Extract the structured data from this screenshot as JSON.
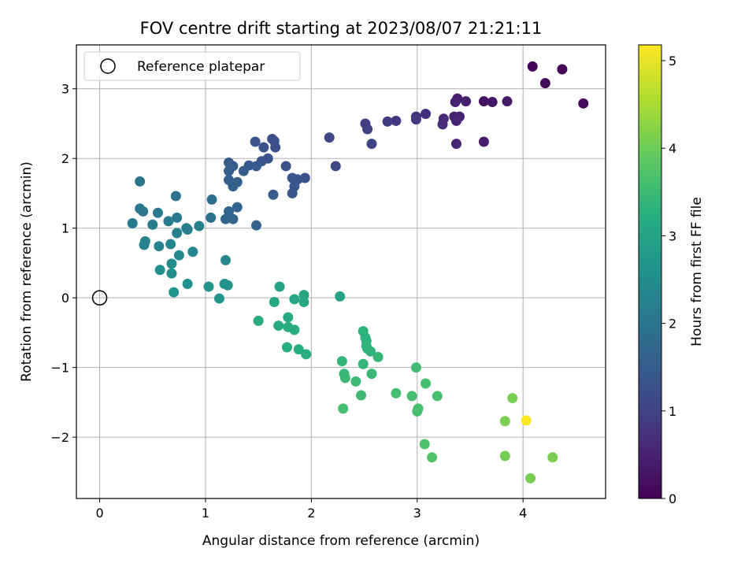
{
  "chart_data": {
    "type": "scatter",
    "title": "FOV centre drift starting at 2023/08/07 21:21:11",
    "xlabel": "Angular distance from reference (arcmin)",
    "ylabel": "Rotation from reference (arcmin)",
    "xlim": [
      -0.22,
      4.78
    ],
    "ylim": [
      -2.88,
      3.63
    ],
    "xticks": [
      0,
      1,
      2,
      3,
      4
    ],
    "yticks": [
      -2,
      -1,
      0,
      1,
      2,
      3
    ],
    "xtick_labels": [
      "0",
      "1",
      "2",
      "3",
      "4"
    ],
    "ytick_labels": [
      "−2",
      "−1",
      "0",
      "1",
      "2",
      "3"
    ],
    "grid": true,
    "legend": {
      "placement": "top-left",
      "label": "Reference platepar"
    },
    "reference_point": {
      "x": 0,
      "y": 0
    },
    "colorbar": {
      "label": "Hours from first FF file",
      "min": 0,
      "max": 5.18,
      "ticks": [
        0,
        1,
        2,
        3,
        4,
        5
      ],
      "tick_labels": [
        "0",
        "1",
        "2",
        "3",
        "4",
        "5"
      ],
      "colormap": "viridis"
    },
    "points": [
      {
        "x": 4.09,
        "y": 3.32,
        "c": 0.05
      },
      {
        "x": 4.37,
        "y": 3.28,
        "c": 0.08
      },
      {
        "x": 4.21,
        "y": 3.08,
        "c": 0.12
      },
      {
        "x": 4.57,
        "y": 2.79,
        "c": 0.15
      },
      {
        "x": 3.63,
        "y": 2.82,
        "c": 0.25
      },
      {
        "x": 3.71,
        "y": 2.81,
        "c": 0.3
      },
      {
        "x": 3.85,
        "y": 2.82,
        "c": 0.35
      },
      {
        "x": 3.38,
        "y": 2.86,
        "c": 0.4
      },
      {
        "x": 3.46,
        "y": 2.82,
        "c": 0.45
      },
      {
        "x": 3.36,
        "y": 2.81,
        "c": 0.5
      },
      {
        "x": 3.35,
        "y": 2.6,
        "c": 0.45
      },
      {
        "x": 3.4,
        "y": 2.6,
        "c": 0.5
      },
      {
        "x": 3.37,
        "y": 2.54,
        "c": 0.55
      },
      {
        "x": 3.25,
        "y": 2.57,
        "c": 0.6
      },
      {
        "x": 3.24,
        "y": 2.49,
        "c": 0.65
      },
      {
        "x": 3.08,
        "y": 2.64,
        "c": 0.7
      },
      {
        "x": 2.99,
        "y": 2.6,
        "c": 0.75
      },
      {
        "x": 2.99,
        "y": 2.56,
        "c": 0.8
      },
      {
        "x": 2.8,
        "y": 2.54,
        "c": 0.85
      },
      {
        "x": 2.72,
        "y": 2.53,
        "c": 0.9
      },
      {
        "x": 2.51,
        "y": 2.5,
        "c": 0.95
      },
      {
        "x": 2.53,
        "y": 2.42,
        "c": 1.0
      },
      {
        "x": 2.57,
        "y": 2.21,
        "c": 1.05
      },
      {
        "x": 3.37,
        "y": 2.21,
        "c": 0.55
      },
      {
        "x": 3.63,
        "y": 2.24,
        "c": 0.4
      },
      {
        "x": 2.17,
        "y": 2.3,
        "c": 1.1
      },
      {
        "x": 2.23,
        "y": 1.89,
        "c": 1.15
      },
      {
        "x": 1.63,
        "y": 2.28,
        "c": 1.2
      },
      {
        "x": 1.65,
        "y": 2.25,
        "c": 1.25
      },
      {
        "x": 1.66,
        "y": 2.16,
        "c": 1.25
      },
      {
        "x": 1.47,
        "y": 2.24,
        "c": 1.3
      },
      {
        "x": 1.55,
        "y": 2.16,
        "c": 1.3
      },
      {
        "x": 1.59,
        "y": 2.0,
        "c": 1.35
      },
      {
        "x": 1.53,
        "y": 1.96,
        "c": 1.35
      },
      {
        "x": 1.76,
        "y": 1.89,
        "c": 1.3
      },
      {
        "x": 1.82,
        "y": 1.72,
        "c": 1.35
      },
      {
        "x": 1.87,
        "y": 1.7,
        "c": 1.35
      },
      {
        "x": 1.94,
        "y": 1.72,
        "c": 1.3
      },
      {
        "x": 1.84,
        "y": 1.6,
        "c": 1.4
      },
      {
        "x": 1.82,
        "y": 1.5,
        "c": 1.4
      },
      {
        "x": 1.48,
        "y": 1.89,
        "c": 1.45
      },
      {
        "x": 1.41,
        "y": 1.9,
        "c": 1.45
      },
      {
        "x": 1.36,
        "y": 1.82,
        "c": 1.5
      },
      {
        "x": 1.26,
        "y": 1.89,
        "c": 1.5
      },
      {
        "x": 1.22,
        "y": 1.94,
        "c": 1.5
      },
      {
        "x": 1.22,
        "y": 1.82,
        "c": 1.55
      },
      {
        "x": 1.22,
        "y": 1.69,
        "c": 1.55
      },
      {
        "x": 1.3,
        "y": 1.66,
        "c": 1.6
      },
      {
        "x": 1.26,
        "y": 1.6,
        "c": 1.6
      },
      {
        "x": 1.64,
        "y": 1.48,
        "c": 1.5
      },
      {
        "x": 1.3,
        "y": 1.3,
        "c": 1.65
      },
      {
        "x": 1.22,
        "y": 1.24,
        "c": 1.65
      },
      {
        "x": 1.19,
        "y": 1.13,
        "c": 1.7
      },
      {
        "x": 1.26,
        "y": 1.13,
        "c": 1.7
      },
      {
        "x": 1.48,
        "y": 1.04,
        "c": 1.6
      },
      {
        "x": 1.06,
        "y": 1.41,
        "c": 1.85
      },
      {
        "x": 1.05,
        "y": 1.15,
        "c": 1.9
      },
      {
        "x": 0.38,
        "y": 1.67,
        "c": 2.0
      },
      {
        "x": 0.72,
        "y": 1.46,
        "c": 1.95
      },
      {
        "x": 0.38,
        "y": 1.28,
        "c": 2.05
      },
      {
        "x": 0.41,
        "y": 1.24,
        "c": 2.05
      },
      {
        "x": 0.55,
        "y": 1.22,
        "c": 2.1
      },
      {
        "x": 0.73,
        "y": 1.15,
        "c": 2.1
      },
      {
        "x": 0.65,
        "y": 1.1,
        "c": 2.15
      },
      {
        "x": 0.31,
        "y": 1.07,
        "c": 2.1
      },
      {
        "x": 0.5,
        "y": 1.05,
        "c": 2.15
      },
      {
        "x": 0.82,
        "y": 1.0,
        "c": 2.2
      },
      {
        "x": 0.94,
        "y": 1.03,
        "c": 2.2
      },
      {
        "x": 0.83,
        "y": 0.98,
        "c": 2.2
      },
      {
        "x": 0.73,
        "y": 0.93,
        "c": 2.25
      },
      {
        "x": 0.43,
        "y": 0.81,
        "c": 2.25
      },
      {
        "x": 0.42,
        "y": 0.76,
        "c": 2.3
      },
      {
        "x": 0.56,
        "y": 0.74,
        "c": 2.3
      },
      {
        "x": 0.67,
        "y": 0.77,
        "c": 2.35
      },
      {
        "x": 0.88,
        "y": 0.66,
        "c": 2.35
      },
      {
        "x": 0.75,
        "y": 0.61,
        "c": 2.4
      },
      {
        "x": 1.19,
        "y": 0.54,
        "c": 2.4
      },
      {
        "x": 0.68,
        "y": 0.49,
        "c": 2.5
      },
      {
        "x": 0.57,
        "y": 0.4,
        "c": 2.55
      },
      {
        "x": 0.68,
        "y": 0.35,
        "c": 2.55
      },
      {
        "x": 0.83,
        "y": 0.2,
        "c": 2.6
      },
      {
        "x": 1.18,
        "y": 0.2,
        "c": 2.6
      },
      {
        "x": 1.21,
        "y": 0.18,
        "c": 2.65
      },
      {
        "x": 1.03,
        "y": 0.16,
        "c": 2.65
      },
      {
        "x": 0.7,
        "y": 0.08,
        "c": 2.7
      },
      {
        "x": 1.13,
        "y": -0.01,
        "c": 2.7
      },
      {
        "x": 1.7,
        "y": 0.16,
        "c": 3.0
      },
      {
        "x": 1.93,
        "y": 0.04,
        "c": 3.05
      },
      {
        "x": 1.84,
        "y": -0.02,
        "c": 3.05
      },
      {
        "x": 1.93,
        "y": -0.06,
        "c": 3.1
      },
      {
        "x": 1.65,
        "y": -0.06,
        "c": 3.1
      },
      {
        "x": 2.27,
        "y": 0.02,
        "c": 3.0
      },
      {
        "x": 1.78,
        "y": -0.28,
        "c": 3.15
      },
      {
        "x": 1.5,
        "y": -0.33,
        "c": 3.15
      },
      {
        "x": 1.69,
        "y": -0.4,
        "c": 3.15
      },
      {
        "x": 1.78,
        "y": -0.42,
        "c": 3.2
      },
      {
        "x": 1.84,
        "y": -0.46,
        "c": 3.2
      },
      {
        "x": 1.77,
        "y": -0.71,
        "c": 3.2
      },
      {
        "x": 1.88,
        "y": -0.74,
        "c": 3.2
      },
      {
        "x": 1.95,
        "y": -0.81,
        "c": 3.25
      },
      {
        "x": 2.49,
        "y": -0.48,
        "c": 3.3
      },
      {
        "x": 2.51,
        "y": -0.57,
        "c": 3.3
      },
      {
        "x": 2.52,
        "y": -0.62,
        "c": 3.3
      },
      {
        "x": 2.52,
        "y": -0.69,
        "c": 3.35
      },
      {
        "x": 2.53,
        "y": -0.73,
        "c": 3.35
      },
      {
        "x": 2.56,
        "y": -0.77,
        "c": 3.35
      },
      {
        "x": 2.63,
        "y": -0.85,
        "c": 3.4
      },
      {
        "x": 2.29,
        "y": -0.91,
        "c": 3.4
      },
      {
        "x": 2.49,
        "y": -0.95,
        "c": 3.4
      },
      {
        "x": 2.31,
        "y": -1.09,
        "c": 3.45
      },
      {
        "x": 2.57,
        "y": -1.09,
        "c": 3.45
      },
      {
        "x": 2.32,
        "y": -1.15,
        "c": 3.45
      },
      {
        "x": 2.42,
        "y": -1.2,
        "c": 3.5
      },
      {
        "x": 2.47,
        "y": -1.4,
        "c": 3.5
      },
      {
        "x": 2.99,
        "y": -1.0,
        "c": 3.55
      },
      {
        "x": 3.08,
        "y": -1.23,
        "c": 3.6
      },
      {
        "x": 2.8,
        "y": -1.37,
        "c": 3.6
      },
      {
        "x": 2.95,
        "y": -1.41,
        "c": 3.6
      },
      {
        "x": 3.19,
        "y": -1.41,
        "c": 3.65
      },
      {
        "x": 2.3,
        "y": -1.59,
        "c": 3.6
      },
      {
        "x": 3.01,
        "y": -1.59,
        "c": 3.65
      },
      {
        "x": 3.0,
        "y": -1.63,
        "c": 3.65
      },
      {
        "x": 3.07,
        "y": -2.1,
        "c": 3.7
      },
      {
        "x": 3.14,
        "y": -2.29,
        "c": 3.75
      },
      {
        "x": 3.9,
        "y": -1.44,
        "c": 4.1
      },
      {
        "x": 3.83,
        "y": -1.77,
        "c": 4.1
      },
      {
        "x": 4.03,
        "y": -1.76,
        "c": 5.18
      },
      {
        "x": 3.83,
        "y": -2.27,
        "c": 4.05
      },
      {
        "x": 4.28,
        "y": -2.29,
        "c": 4.1
      },
      {
        "x": 4.07,
        "y": -2.59,
        "c": 4.1
      }
    ]
  }
}
